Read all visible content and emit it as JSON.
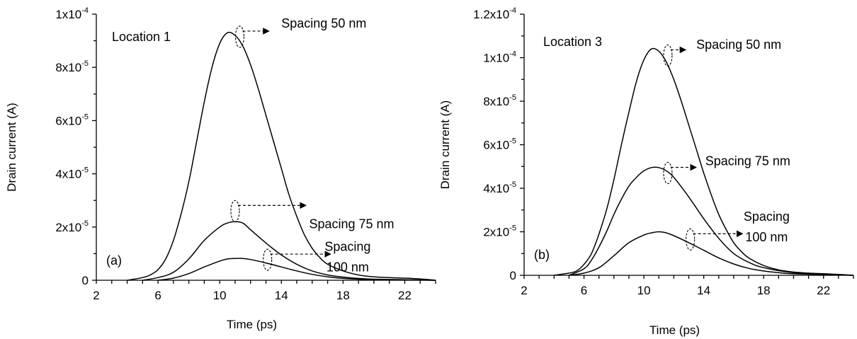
{
  "chart_data": [
    {
      "type": "line",
      "panel_label": "(a)",
      "annotation_title": "Location 1",
      "xlabel": "Time (ps)",
      "ylabel": "Drain current (A)",
      "xlim": [
        2,
        24
      ],
      "ylim": [
        0,
        0.0001
      ],
      "x_ticks": [
        "2",
        "6",
        "10",
        "14",
        "18",
        "22"
      ],
      "y_ticks": [
        {
          "mantissa": "0",
          "exp": ""
        },
        {
          "mantissa": "2x10",
          "exp": "-5"
        },
        {
          "mantissa": "4x10",
          "exp": "-5"
        },
        {
          "mantissa": "6x10",
          "exp": "-5"
        },
        {
          "mantissa": "8x10",
          "exp": "-5"
        },
        {
          "mantissa": "1x10",
          "exp": "-4"
        }
      ],
      "series": [
        {
          "label_lines": [
            "Spacing 50 nm"
          ],
          "label_at": [
            14.0,
            9.5e-05
          ],
          "ellipse_at": [
            11.3,
            9.15e-05
          ],
          "arrow_to_x": 13.2,
          "x": [
            4.0,
            5.0,
            5.5,
            6.0,
            6.5,
            7.0,
            7.5,
            8.0,
            8.5,
            9.0,
            9.5,
            10.0,
            10.5,
            11.0,
            11.5,
            12.0,
            12.5,
            13.0,
            13.5,
            14.0,
            14.5,
            15.0,
            15.5,
            16.0,
            16.5,
            17.0,
            18.0,
            19.0,
            20.0,
            21.0,
            22.0,
            23.0,
            24.0
          ],
          "y": [
            0,
            1e-06,
            2e-06,
            4e-06,
            8e-06,
            1.5e-05,
            2.5e-05,
            3.7e-05,
            5.2e-05,
            6.7e-05,
            8e-05,
            8.9e-05,
            9.3e-05,
            9.2e-05,
            8.8e-05,
            8.1e-05,
            7.2e-05,
            6.2e-05,
            5.2e-05,
            4.2e-05,
            3.2e-05,
            2.4e-05,
            1.7e-05,
            1.2e-05,
            8.5e-06,
            6e-06,
            3.5e-06,
            2e-06,
            1.3e-06,
            1e-06,
            8e-07,
            5e-07,
            0
          ]
        },
        {
          "label_lines": [
            "Spacing 75 nm"
          ],
          "label_at": [
            15.8,
            1.95e-05
          ],
          "ellipse_at": [
            11.0,
            2.6e-05
          ],
          "arrow_to_x": 15.6,
          "x": [
            5.0,
            6.0,
            7.0,
            8.0,
            9.0,
            10.0,
            10.5,
            11.0,
            11.5,
            12.0,
            13.0,
            14.0,
            15.0,
            16.0,
            17.0,
            18.0,
            19.0,
            20.0,
            22.0,
            24.0
          ],
          "y": [
            0,
            1e-06,
            3e-06,
            8e-06,
            1.5e-05,
            2e-05,
            2.15e-05,
            2.2e-05,
            2.15e-05,
            1.9e-05,
            1.4e-05,
            9.5e-06,
            6e-06,
            3.5e-06,
            2e-06,
            1.2e-06,
            7e-07,
            4e-07,
            2e-07,
            0
          ]
        },
        {
          "label_lines": [
            "Spacing",
            "100 nm"
          ],
          "label_at": [
            18.3,
            1.1e-05
          ],
          "ellipse_at": [
            13.1,
            7.7e-06
          ],
          "arrow_to_x": 17.2,
          "x": [
            6.0,
            7.0,
            8.0,
            9.0,
            10.0,
            10.5,
            11.0,
            11.5,
            12.0,
            13.0,
            14.0,
            15.0,
            16.0,
            17.0,
            18.0,
            19.0,
            20.0,
            22.0,
            24.0
          ],
          "y": [
            0,
            8e-07,
            2.5e-06,
            5e-06,
            7.2e-06,
            8e-06,
            8.2e-06,
            8.2e-06,
            7.8e-06,
            6.5e-06,
            5e-06,
            3.5e-06,
            2.2e-06,
            1.3e-06,
            7e-07,
            4e-07,
            2e-07,
            1e-07,
            0
          ]
        }
      ]
    },
    {
      "type": "line",
      "panel_label": "(b)",
      "annotation_title": "Location 3",
      "xlabel": "Time (ps)",
      "ylabel": "Drain current (A)",
      "xlim": [
        2,
        24
      ],
      "ylim": [
        0,
        0.00012
      ],
      "x_ticks": [
        "2",
        "6",
        "10",
        "14",
        "18",
        "22"
      ],
      "y_ticks": [
        {
          "mantissa": "0",
          "exp": ""
        },
        {
          "mantissa": "2x10",
          "exp": "-5"
        },
        {
          "mantissa": "4x10",
          "exp": "-5"
        },
        {
          "mantissa": "6x10",
          "exp": "-5"
        },
        {
          "mantissa": "8x10",
          "exp": "-5"
        },
        {
          "mantissa": "1x10",
          "exp": "-4"
        },
        {
          "mantissa": "1.2x10",
          "exp": "-4"
        }
      ],
      "series": [
        {
          "label_lines": [
            "Spacing 50 nm"
          ],
          "label_at": [
            13.5,
            0.000104
          ],
          "ellipse_at": [
            11.6,
            0.000101
          ],
          "arrow_to_x": 12.8,
          "x": [
            4.0,
            5.0,
            5.5,
            6.0,
            6.5,
            7.0,
            7.5,
            8.0,
            8.5,
            9.0,
            9.5,
            10.0,
            10.5,
            11.0,
            11.5,
            12.0,
            12.5,
            13.0,
            13.5,
            14.0,
            14.5,
            15.0,
            15.5,
            16.0,
            16.5,
            17.0,
            18.0,
            19.0,
            20.0,
            21.0,
            22.0,
            23.0,
            24.0
          ],
          "y": [
            0,
            1e-06,
            2e-06,
            5e-06,
            1e-05,
            1.9e-05,
            3e-05,
            4.4e-05,
            6e-05,
            7.5e-05,
            8.9e-05,
            9.9e-05,
            0.000104,
            0.000103,
            9.8e-05,
            9e-05,
            8e-05,
            6.9e-05,
            5.8e-05,
            4.7e-05,
            3.7e-05,
            2.8e-05,
            2.1e-05,
            1.5e-05,
            1.1e-05,
            8e-06,
            4.5e-06,
            2.5e-06,
            1.5e-06,
            1e-06,
            7e-07,
            4e-07,
            0
          ]
        },
        {
          "label_lines": [
            "Spacing 75 nm"
          ],
          "label_at": [
            14.1,
            5.05e-05
          ],
          "ellipse_at": [
            11.6,
            4.7e-05
          ],
          "arrow_to_x": 13.5,
          "x": [
            5.0,
            6.0,
            6.5,
            7.0,
            7.5,
            8.0,
            8.5,
            9.0,
            9.5,
            10.0,
            10.5,
            11.0,
            11.5,
            12.0,
            13.0,
            14.0,
            15.0,
            16.0,
            17.0,
            18.0,
            20.0,
            22.0,
            24.0
          ],
          "y": [
            0,
            3e-06,
            7e-06,
            1.3e-05,
            2e-05,
            2.8e-05,
            3.5e-05,
            4.1e-05,
            4.5e-05,
            4.8e-05,
            4.95e-05,
            4.95e-05,
            4.8e-05,
            4.5e-05,
            3.6e-05,
            2.6e-05,
            1.7e-05,
            1e-05,
            6e-06,
            3.5e-06,
            1.2e-06,
            5e-07,
            0
          ]
        },
        {
          "label_lines": [
            "Spacing",
            "100 nm"
          ],
          "label_at": [
            18.2,
            2.5e-05
          ],
          "ellipse_at": [
            13.1,
            1.65e-05
          ],
          "arrow_to_x": 16.6,
          "x": [
            5.0,
            6.0,
            7.0,
            8.0,
            9.0,
            10.0,
            10.5,
            11.0,
            11.5,
            12.0,
            13.0,
            14.0,
            15.0,
            16.0,
            17.0,
            18.0,
            19.0,
            20.0,
            22.0,
            24.0
          ],
          "y": [
            0,
            1e-06,
            3.5e-06,
            9e-06,
            1.5e-05,
            1.85e-05,
            1.95e-05,
            2e-05,
            1.95e-05,
            1.82e-05,
            1.5e-05,
            1.15e-05,
            8e-06,
            5.2e-06,
            3.2e-06,
            2e-06,
            1.2e-06,
            7e-07,
            3e-07,
            0
          ]
        }
      ]
    }
  ]
}
